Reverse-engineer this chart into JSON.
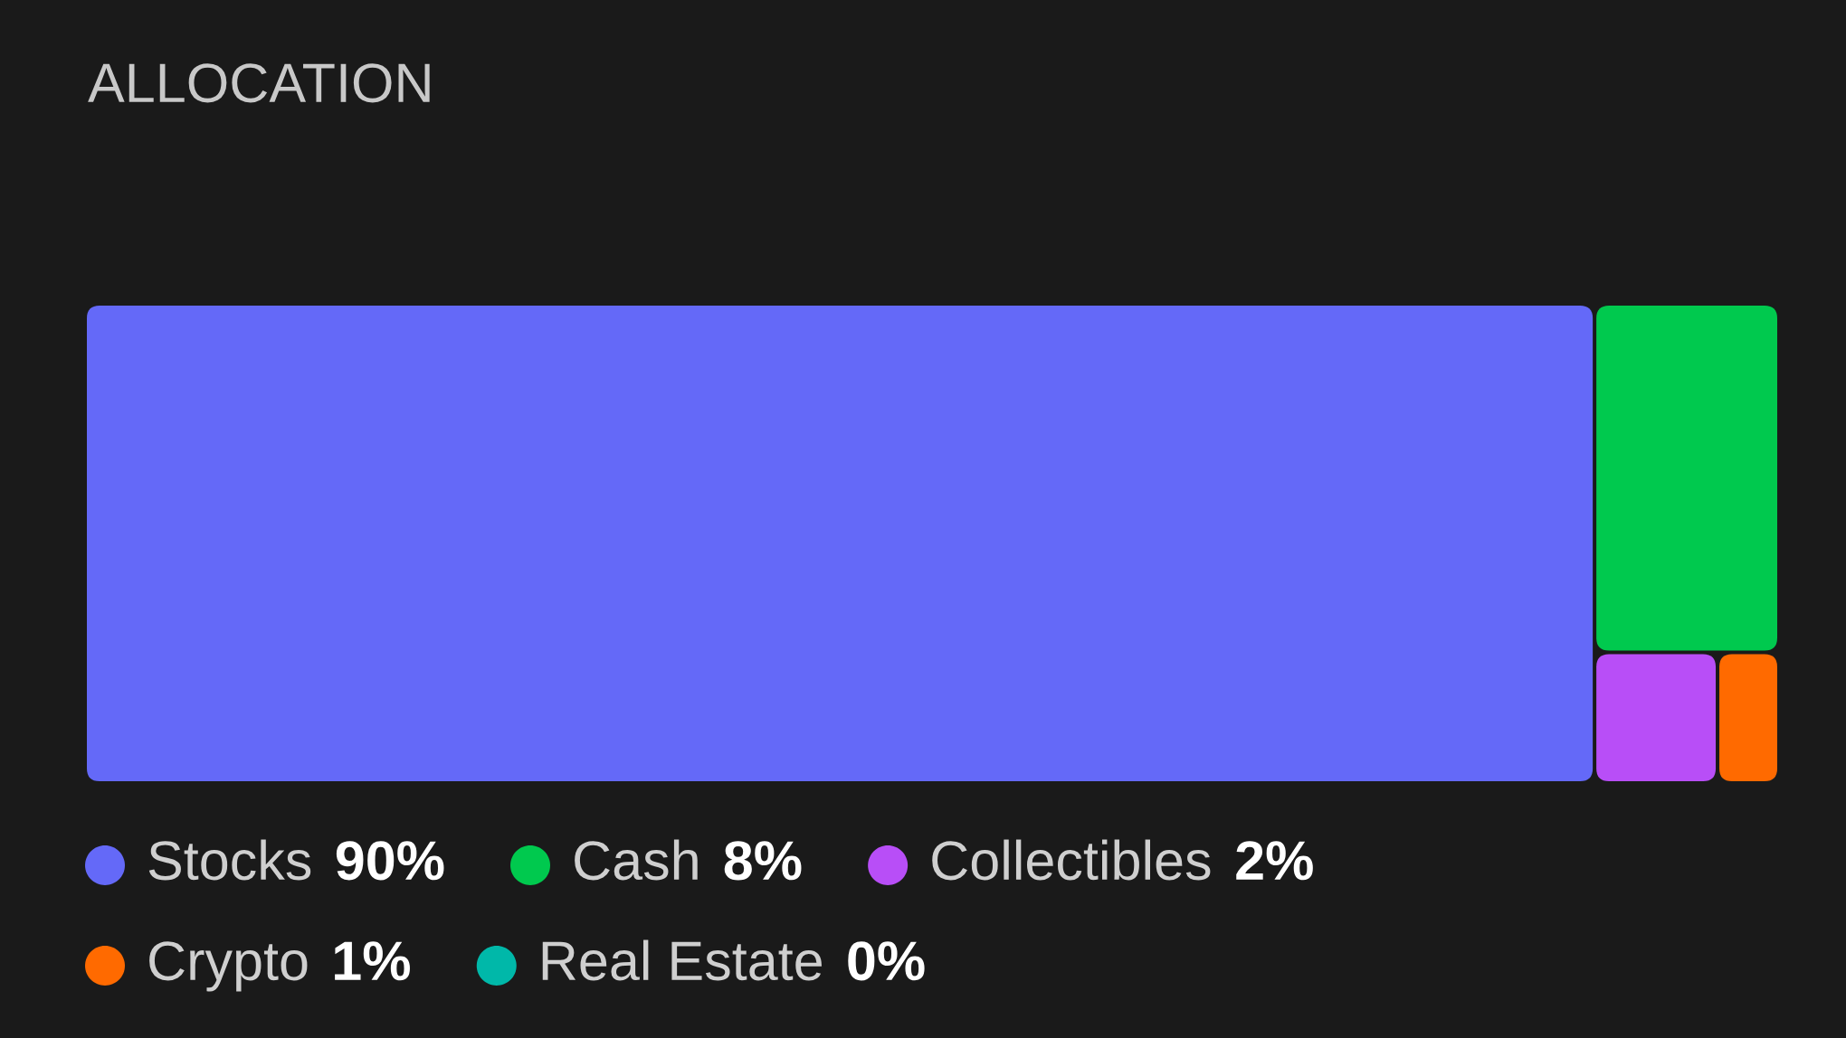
{
  "chart_data": {
    "type": "other",
    "title": "ALLOCATION",
    "categories": [
      "Stocks",
      "Cash",
      "Collectibles",
      "Crypto",
      "Real Estate"
    ],
    "values": [
      90,
      8,
      2,
      1,
      0
    ],
    "value_labels": [
      "90%",
      "8%",
      "2%",
      "1%",
      "0%"
    ],
    "colors": [
      "#6469f8",
      "#00c94e",
      "#b84ef7",
      "#ff6a00",
      "#00b8a9"
    ]
  }
}
